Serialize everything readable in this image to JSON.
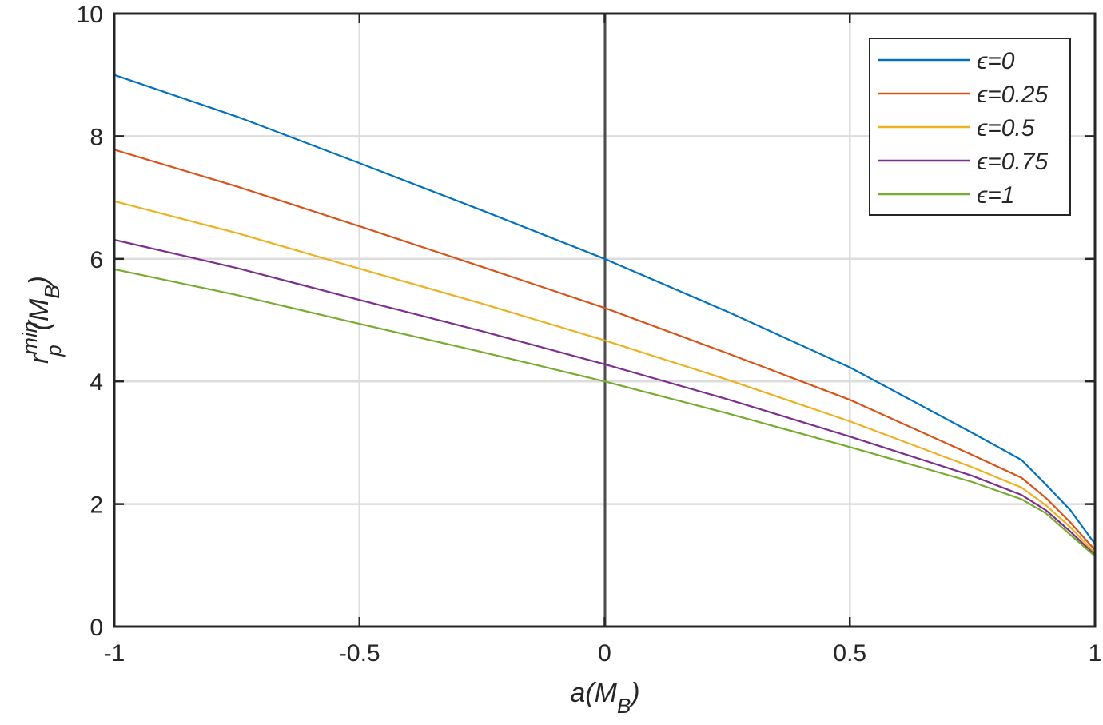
{
  "chart_data": {
    "type": "line",
    "title": "",
    "xlabel": "a(M_B)",
    "ylabel": "r_p^min(M_B)",
    "xlim": [
      -1,
      1
    ],
    "ylim": [
      0,
      10
    ],
    "xticks": [
      -1,
      -0.5,
      0,
      0.5,
      1
    ],
    "xtick_labels": [
      "-1",
      "-0.5",
      "0",
      "0.5",
      "1"
    ],
    "yticks": [
      0,
      2,
      4,
      6,
      8,
      10
    ],
    "ytick_labels": [
      "0",
      "2",
      "4",
      "6",
      "8",
      "10"
    ],
    "grid": true,
    "legend_position": "upper right",
    "x": [
      -1,
      -0.75,
      -0.5,
      -0.25,
      0,
      0.25,
      0.5,
      0.75,
      0.85,
      0.9,
      0.95,
      1
    ],
    "series": [
      {
        "name": "ε=0",
        "color": "#0072BD",
        "values": [
          9.0,
          8.32,
          7.56,
          6.79,
          6.0,
          5.14,
          4.23,
          3.16,
          2.72,
          2.32,
          1.9,
          1.35
        ]
      },
      {
        "name": "ε=0.25",
        "color": "#D95319",
        "values": [
          7.78,
          7.18,
          6.53,
          5.87,
          5.2,
          4.46,
          3.7,
          2.8,
          2.43,
          2.1,
          1.7,
          1.25
        ]
      },
      {
        "name": "ε=0.5",
        "color": "#EDB120",
        "values": [
          6.94,
          6.42,
          5.84,
          5.27,
          4.67,
          4.03,
          3.35,
          2.6,
          2.27,
          1.98,
          1.62,
          1.2
        ]
      },
      {
        "name": "ε=0.75",
        "color": "#7E2F8E",
        "values": [
          6.31,
          5.85,
          5.33,
          4.82,
          4.28,
          3.71,
          3.1,
          2.46,
          2.15,
          1.9,
          1.55,
          1.17
        ]
      },
      {
        "name": "ε=1",
        "color": "#77AC30",
        "values": [
          5.83,
          5.41,
          4.94,
          4.48,
          4.0,
          3.48,
          2.93,
          2.36,
          2.08,
          1.85,
          1.5,
          1.15
        ]
      }
    ]
  },
  "axis": {
    "xlabel_main": "a(M",
    "xlabel_sub": "B",
    "xlabel_close": ")",
    "ylabel_main": "r",
    "ylabel_sup": "min",
    "ylabel_sub": "p",
    "ylabel_paren": "(M",
    "ylabel_sub2": "B",
    "ylabel_close": ")"
  },
  "legend": {
    "items": [
      {
        "label": "ϵ=0",
        "color": "#0072BD"
      },
      {
        "label": "ϵ=0.25",
        "color": "#D95319"
      },
      {
        "label": "ϵ=0.5",
        "color": "#EDB120"
      },
      {
        "label": "ϵ=0.75",
        "color": "#7E2F8E"
      },
      {
        "label": "ϵ=1",
        "color": "#77AC30"
      }
    ]
  }
}
